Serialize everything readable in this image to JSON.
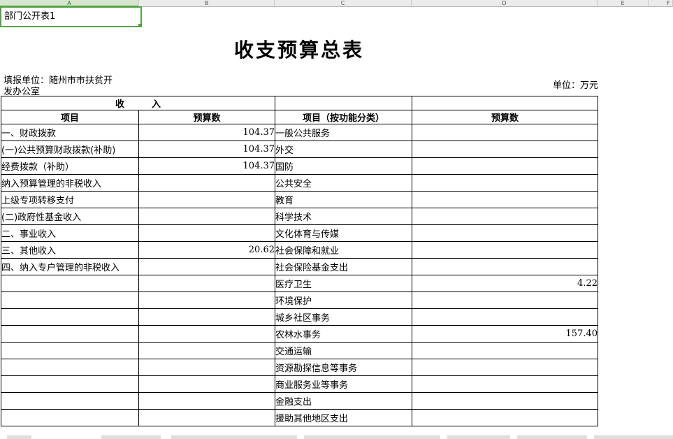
{
  "sheet": {
    "column_headers": [
      "A",
      "B",
      "C",
      "D",
      "E",
      "F"
    ],
    "selected_column": "A",
    "selected_cell": {
      "reference": "A1",
      "value": "部门公开表1"
    },
    "selection_color": "#53a344"
  },
  "page": {
    "title": "收支预算总表",
    "reporting_unit_line1": "填报单位：随州市市扶贫开",
    "reporting_unit_line2": "发办公室",
    "unit_note": "单位：万元"
  },
  "table": {
    "section_header": "收　　　入",
    "columns": [
      "项目",
      "预算数",
      "项目（按功能分类）",
      "预算数"
    ],
    "rows": [
      {
        "income": "一、财政拨款",
        "indent": 0,
        "income_value": "104.37",
        "expense": "一般公共服务",
        "expense_value": ""
      },
      {
        "income": "(一)公共预算财政拨款(补助)",
        "indent": 1,
        "income_value": "104.37",
        "expense": "外交",
        "expense_value": ""
      },
      {
        "income": "经费拨款（补助）",
        "indent": 2,
        "income_value": "104.37",
        "expense": "国防",
        "expense_value": ""
      },
      {
        "income": "纳入预算管理的非税收入",
        "indent": 2,
        "income_value": "",
        "expense": "公共安全",
        "expense_value": ""
      },
      {
        "income": "上级专项转移支付",
        "indent": 2,
        "income_value": "",
        "expense": "教育",
        "expense_value": ""
      },
      {
        "income": "(二)政府性基金收入",
        "indent": 1,
        "income_value": "",
        "expense": "科学技术",
        "expense_value": ""
      },
      {
        "income": "二、事业收入",
        "indent": 0,
        "income_value": "",
        "expense": "文化体育与传媒",
        "expense_value": ""
      },
      {
        "income": "三、其他收入",
        "indent": 0,
        "income_value": "20.62",
        "expense": "社会保障和就业",
        "expense_value": ""
      },
      {
        "income": "四、纳入专户管理的非税收入",
        "indent": 0,
        "income_value": "",
        "expense": "社会保险基金支出",
        "expense_value": ""
      },
      {
        "income": "",
        "indent": 0,
        "income_value": "",
        "expense": "医疗卫生",
        "expense_value": "4.22"
      },
      {
        "income": "",
        "indent": 0,
        "income_value": "",
        "expense": "环境保护",
        "expense_value": ""
      },
      {
        "income": "",
        "indent": 0,
        "income_value": "",
        "expense": "城乡社区事务",
        "expense_value": ""
      },
      {
        "income": "",
        "indent": 0,
        "income_value": "",
        "expense": "农林水事务",
        "expense_value": "157.40"
      },
      {
        "income": "",
        "indent": 0,
        "income_value": "",
        "expense": "交通运输",
        "expense_value": ""
      },
      {
        "income": "",
        "indent": 0,
        "income_value": "",
        "expense": "资源勘探信息等事务",
        "expense_value": ""
      },
      {
        "income": "",
        "indent": 0,
        "income_value": "",
        "expense": "商业服务业等事务",
        "expense_value": ""
      },
      {
        "income": "",
        "indent": 0,
        "income_value": "",
        "expense": "金融支出",
        "expense_value": ""
      },
      {
        "income": "",
        "indent": 0,
        "income_value": "",
        "expense": "援助其他地区支出",
        "expense_value": ""
      }
    ]
  }
}
